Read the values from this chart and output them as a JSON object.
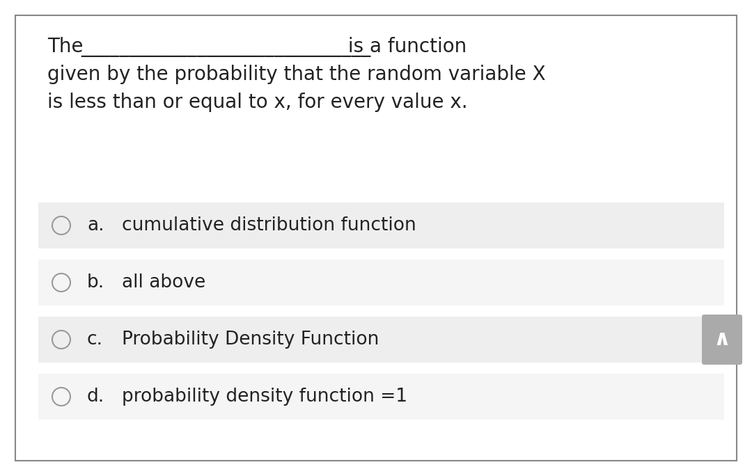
{
  "background_color": "#ffffff",
  "border_color": "#888888",
  "question_line1_pre": "The ",
  "question_line1_blank": "______________________________",
  "question_line1_post": " is a function",
  "question_line2": "given by the probability that the random variable X",
  "question_line3": "is less than or equal to x, for every value x.",
  "options": [
    {
      "letter": "a.",
      "text": "cumulative distribution function"
    },
    {
      "letter": "b.",
      "text": "all above"
    },
    {
      "letter": "c.",
      "text": "Probability Density Function"
    },
    {
      "letter": "d.",
      "text": "probability density function =1"
    }
  ],
  "option_bg_colors": [
    "#eeeeee",
    "#f5f5f5",
    "#eeeeee",
    "#f5f5f5"
  ],
  "text_color": "#222222",
  "font_size_question": 20,
  "font_size_options": 19,
  "scroll_button_color": "#aaaaaa",
  "scroll_arrow_color": "#ffffff"
}
